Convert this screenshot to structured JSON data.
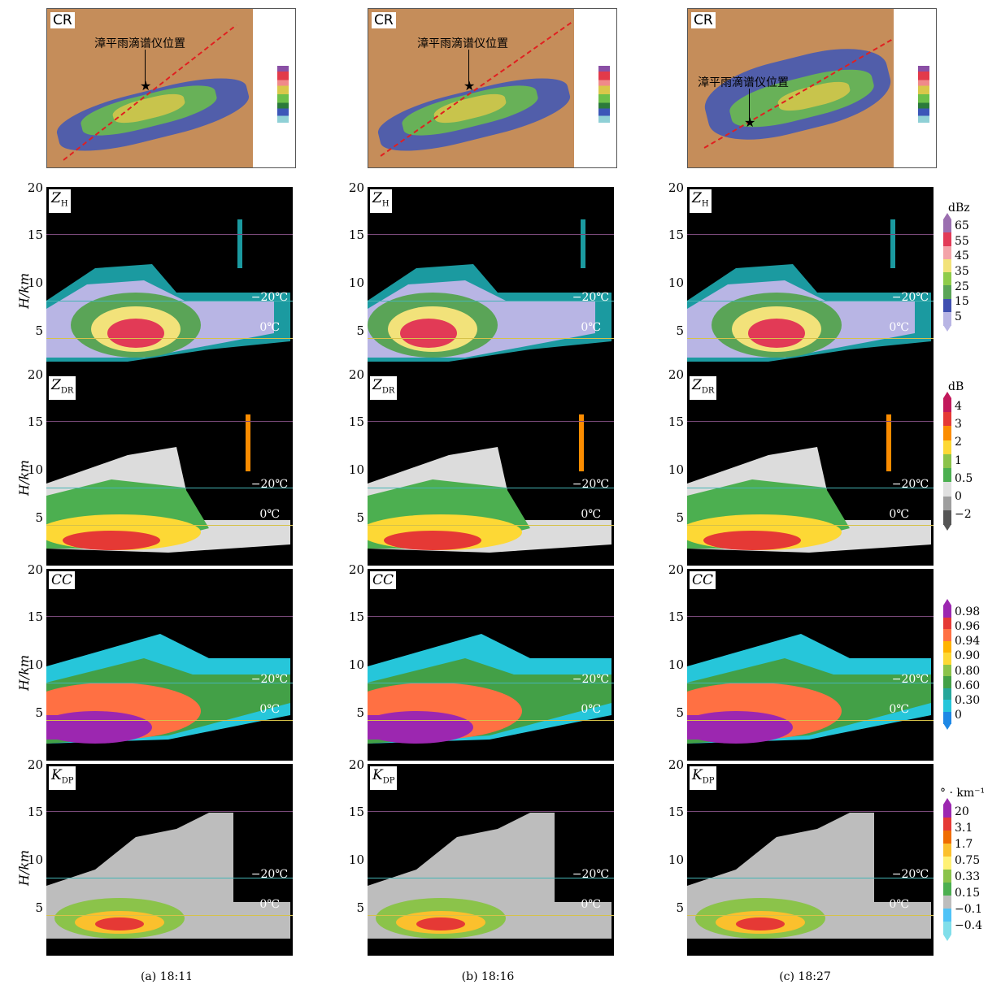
{
  "maps": [
    {
      "tag": "CR",
      "location_label": "漳平雨滴谱仪位置"
    },
    {
      "tag": "CR",
      "location_label": "漳平雨滴谱仪位置"
    },
    {
      "tag": "CR",
      "location_label": "漳平雨滴谱仪位置"
    }
  ],
  "rows": [
    {
      "tag_main": "Z",
      "tag_sub": "H"
    },
    {
      "tag_main": "Z",
      "tag_sub": "DR"
    },
    {
      "tag_main": "CC",
      "tag_sub": ""
    },
    {
      "tag_main": "K",
      "tag_sub": "DP"
    }
  ],
  "y_axis": {
    "label": "H/km",
    "ticks": [
      "20",
      "15",
      "10",
      "5"
    ]
  },
  "isotherms": {
    "minus20": "−20℃",
    "zero": "0℃"
  },
  "captions": [
    "(a) 18:11",
    "(b) 18:16",
    "(c) 18:27"
  ],
  "colorbars": [
    {
      "unit": "dBz",
      "labels": [
        "65",
        "55",
        "45",
        "35",
        "25",
        "15",
        "5"
      ],
      "colors": [
        "#9b6fb0",
        "#e23a56",
        "#f3a3a8",
        "#f2e27a",
        "#8fcc4a",
        "#5aa457",
        "#3f4fb0",
        "#b8b5e4"
      ]
    },
    {
      "unit": "dB",
      "labels": [
        "4",
        "3",
        "2",
        "1",
        "0.5",
        "0",
        "−2"
      ],
      "colors": [
        "#c2185b",
        "#e53935",
        "#fb8c00",
        "#fdd835",
        "#8bc34a",
        "#4caf50",
        "#e0e0e0",
        "#9e9e9e",
        "#555555"
      ]
    },
    {
      "unit": "",
      "labels": [
        "0.98",
        "0.96",
        "0.94",
        "0.90",
        "0.80",
        "0.60",
        "0.30",
        "0"
      ],
      "colors": [
        "#9c27b0",
        "#e53935",
        "#ff7043",
        "#ffb300",
        "#fdd835",
        "#8bc34a",
        "#43a047",
        "#26a69a",
        "#26c6da",
        "#1e88e5"
      ]
    },
    {
      "unit": "° · km⁻¹",
      "labels": [
        "20",
        "3.1",
        "1.7",
        "0.75",
        "0.33",
        "0.15",
        "−0.1",
        "−0.4"
      ],
      "colors": [
        "#9c27b0",
        "#e53935",
        "#ef6c00",
        "#fbc02d",
        "#fff176",
        "#8bc34a",
        "#4caf50",
        "#bdbdbd",
        "#4fc3f7",
        "#80deea"
      ]
    }
  ]
}
